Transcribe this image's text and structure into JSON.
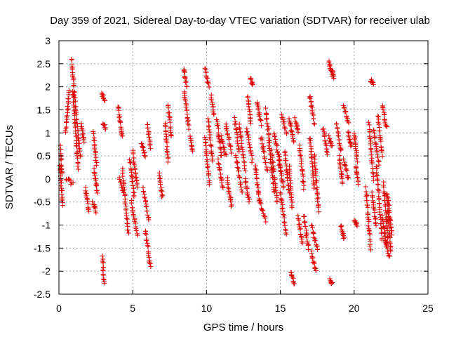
{
  "chart_data": {
    "type": "scatter",
    "title": "Day 359 of 2021, Sidereal Day-to-day VTEC variation (SDTVAR) for receiver ulab",
    "xlabel": "GPS time / hours",
    "ylabel": "SDTVAR / TECUs",
    "xlim": [
      0,
      25
    ],
    "ylim": [
      -2.5,
      3
    ],
    "xticks": [
      0,
      5,
      10,
      15,
      20,
      25
    ],
    "xtick_labels": [
      "0",
      "5",
      "10",
      "15",
      "20",
      "25"
    ],
    "yticks": [
      -2.5,
      -2,
      -1.5,
      -1,
      -0.5,
      0,
      0.5,
      1,
      1.5,
      2,
      2.5,
      3
    ],
    "ytick_labels": [
      "-2.5",
      "-2",
      "-1.5",
      "-1",
      "-0.5",
      "0",
      "0.5",
      "1",
      "1.5",
      "2",
      "2.5",
      "3"
    ],
    "grid": true,
    "marker": "plus",
    "color": "#e00000",
    "series": [
      {
        "name": "SDTVAR",
        "segments": [
          {
            "x0": 0.05,
            "x1": 0.25,
            "y0": 0.3,
            "y1": -0.55
          },
          {
            "x0": 0.1,
            "x1": 0.2,
            "y0": 0.7,
            "y1": 0.1
          },
          {
            "x0": 0.45,
            "x1": 0.7,
            "y0": 1.0,
            "y1": 1.9
          },
          {
            "x0": 0.5,
            "x1": 0.95,
            "y0": 0.0,
            "y1": -0.1
          },
          {
            "x0": 0.85,
            "x1": 1.1,
            "y0": 2.6,
            "y1": 1.7
          },
          {
            "x0": 0.95,
            "x1": 1.3,
            "y0": 1.9,
            "y1": 0.2
          },
          {
            "x0": 1.1,
            "x1": 1.45,
            "y0": 1.6,
            "y1": 0.5
          },
          {
            "x0": 1.5,
            "x1": 1.7,
            "y0": 1.2,
            "y1": 0.8
          },
          {
            "x0": 1.8,
            "x1": 2.0,
            "y0": -0.2,
            "y1": -0.7
          },
          {
            "x0": 2.3,
            "x1": 2.5,
            "y0": -0.5,
            "y1": -0.7
          },
          {
            "x0": 2.35,
            "x1": 2.55,
            "y0": 1.0,
            "y1": 0.3
          },
          {
            "x0": 2.4,
            "x1": 2.6,
            "y0": 0.2,
            "y1": -0.3
          },
          {
            "x0": 2.9,
            "x1": 3.1,
            "y0": 1.85,
            "y1": 1.7
          },
          {
            "x0": 2.95,
            "x1": 3.05,
            "y0": -1.7,
            "y1": -2.25
          },
          {
            "x0": 3.0,
            "x1": 3.15,
            "y0": 1.2,
            "y1": 1.1
          },
          {
            "x0": 4.0,
            "x1": 4.3,
            "y0": 1.6,
            "y1": 0.9
          },
          {
            "x0": 4.1,
            "x1": 4.4,
            "y0": 0.0,
            "y1": -0.3
          },
          {
            "x0": 4.3,
            "x1": 4.7,
            "y0": 0.2,
            "y1": -1.2
          },
          {
            "x0": 4.8,
            "x1": 5.1,
            "y0": 0.4,
            "y1": -0.4
          },
          {
            "x0": 4.9,
            "x1": 5.3,
            "y0": -0.5,
            "y1": -1.2
          },
          {
            "x0": 5.0,
            "x1": 5.3,
            "y0": 0.6,
            "y1": -0.2
          },
          {
            "x0": 5.6,
            "x1": 5.85,
            "y0": 0.8,
            "y1": 0.5
          },
          {
            "x0": 5.7,
            "x1": 6.1,
            "y0": -0.2,
            "y1": -0.9
          },
          {
            "x0": 5.85,
            "x1": 6.2,
            "y0": -1.1,
            "y1": -1.9
          },
          {
            "x0": 6.0,
            "x1": 6.2,
            "y0": 1.2,
            "y1": 0.7
          },
          {
            "x0": 6.8,
            "x1": 7.0,
            "y0": 0.1,
            "y1": -0.4
          },
          {
            "x0": 7.2,
            "x1": 7.4,
            "y0": 1.2,
            "y1": 0.4
          },
          {
            "x0": 7.4,
            "x1": 7.6,
            "y0": 1.6,
            "y1": 0.9
          },
          {
            "x0": 8.45,
            "x1": 8.65,
            "y0": 2.4,
            "y1": 2.0
          },
          {
            "x0": 8.5,
            "x1": 8.8,
            "y0": 1.9,
            "y1": 1.1
          },
          {
            "x0": 8.9,
            "x1": 9.05,
            "y0": 0.9,
            "y1": 0.6
          },
          {
            "x0": 9.9,
            "x1": 10.15,
            "y0": 2.4,
            "y1": 2.0
          },
          {
            "x0": 9.9,
            "x1": 10.2,
            "y0": 0.9,
            "y1": -0.1
          },
          {
            "x0": 10.1,
            "x1": 10.4,
            "y0": 1.3,
            "y1": 0.4
          },
          {
            "x0": 10.3,
            "x1": 10.5,
            "y0": 1.8,
            "y1": 1.4
          },
          {
            "x0": 10.7,
            "x1": 11.0,
            "y0": 1.3,
            "y1": 0.5
          },
          {
            "x0": 10.8,
            "x1": 11.1,
            "y0": 0.4,
            "y1": -0.2
          },
          {
            "x0": 11.0,
            "x1": 11.3,
            "y0": 0.9,
            "y1": 0.5
          },
          {
            "x0": 11.3,
            "x1": 11.7,
            "y0": 1.2,
            "y1": 0.6
          },
          {
            "x0": 11.4,
            "x1": 11.7,
            "y0": 0.0,
            "y1": -0.6
          },
          {
            "x0": 11.9,
            "x1": 12.2,
            "y0": 1.3,
            "y1": 0.6
          },
          {
            "x0": 12.0,
            "x1": 12.4,
            "y0": 0.5,
            "y1": -0.3
          },
          {
            "x0": 12.2,
            "x1": 12.6,
            "y0": 1.2,
            "y1": 0.2
          },
          {
            "x0": 12.6,
            "x1": 12.9,
            "y0": 0.0,
            "y1": -0.5
          },
          {
            "x0": 12.7,
            "x1": 13.1,
            "y0": 1.1,
            "y1": 0.4
          },
          {
            "x0": 12.8,
            "x1": 13.0,
            "y0": 1.8,
            "y1": 1.2
          },
          {
            "x0": 12.95,
            "x1": 13.15,
            "y0": 2.2,
            "y1": 2.05
          },
          {
            "x0": 13.3,
            "x1": 13.6,
            "y0": 0.3,
            "y1": -0.5
          },
          {
            "x0": 13.4,
            "x1": 13.7,
            "y0": 1.7,
            "y1": 1.2
          },
          {
            "x0": 13.6,
            "x1": 14.0,
            "y0": -0.5,
            "y1": -0.9
          },
          {
            "x0": 13.7,
            "x1": 14.1,
            "y0": 0.9,
            "y1": 0.2
          },
          {
            "x0": 14.0,
            "x1": 14.3,
            "y0": 1.5,
            "y1": 0.8
          },
          {
            "x0": 14.2,
            "x1": 14.6,
            "y0": 0.8,
            "y1": -0.3
          },
          {
            "x0": 14.4,
            "x1": 14.8,
            "y0": 0.6,
            "y1": -0.5
          },
          {
            "x0": 14.6,
            "x1": 15.0,
            "y0": 1.0,
            "y1": 0.2
          },
          {
            "x0": 14.9,
            "x1": 15.2,
            "y0": 0.5,
            "y1": -0.2
          },
          {
            "x0": 15.0,
            "x1": 15.4,
            "y0": -0.3,
            "y1": -1.2
          },
          {
            "x0": 15.1,
            "x1": 15.4,
            "y0": 1.4,
            "y1": 1.0
          },
          {
            "x0": 15.3,
            "x1": 15.6,
            "y0": 0.6,
            "y1": -0.3
          },
          {
            "x0": 15.6,
            "x1": 15.9,
            "y0": 1.3,
            "y1": 0.8
          },
          {
            "x0": 15.6,
            "x1": 15.8,
            "y0": 0.3,
            "y1": -0.6
          },
          {
            "x0": 15.7,
            "x1": 15.95,
            "y0": -2.0,
            "y1": -2.3
          },
          {
            "x0": 16.0,
            "x1": 16.2,
            "y0": 1.3,
            "y1": 1.0
          },
          {
            "x0": 16.2,
            "x1": 16.5,
            "y0": -0.8,
            "y1": -1.4
          },
          {
            "x0": 16.3,
            "x1": 16.6,
            "y0": 0.7,
            "y1": -0.2
          },
          {
            "x0": 16.6,
            "x1": 16.9,
            "y0": -0.8,
            "y1": -1.5
          },
          {
            "x0": 17.0,
            "x1": 17.3,
            "y0": 1.8,
            "y1": 1.2
          },
          {
            "x0": 17.0,
            "x1": 17.3,
            "y0": 0.9,
            "y1": -0.2
          },
          {
            "x0": 17.1,
            "x1": 17.5,
            "y0": -1.0,
            "y1": -1.5
          },
          {
            "x0": 17.1,
            "x1": 17.4,
            "y0": -1.6,
            "y1": -2.0
          },
          {
            "x0": 17.3,
            "x1": 17.6,
            "y0": 0.5,
            "y1": -0.7
          },
          {
            "x0": 17.9,
            "x1": 18.2,
            "y0": 1.1,
            "y1": 0.5
          },
          {
            "x0": 18.3,
            "x1": 18.5,
            "y0": 2.55,
            "y1": 2.25
          },
          {
            "x0": 18.3,
            "x1": 18.5,
            "y0": 0.9,
            "y1": 0.7
          },
          {
            "x0": 18.35,
            "x1": 18.5,
            "y0": -2.2,
            "y1": -2.25
          },
          {
            "x0": 18.5,
            "x1": 18.6,
            "y0": 2.35,
            "y1": 2.2
          },
          {
            "x0": 18.8,
            "x1": 19.1,
            "y0": 1.2,
            "y1": 0.6
          },
          {
            "x0": 19.0,
            "x1": 19.2,
            "y0": 0.5,
            "y1": -0.1
          },
          {
            "x0": 19.1,
            "x1": 19.3,
            "y0": -1.0,
            "y1": -1.3
          },
          {
            "x0": 19.3,
            "x1": 19.6,
            "y0": 1.6,
            "y1": 1.2
          },
          {
            "x0": 19.3,
            "x1": 19.6,
            "y0": 0.4,
            "y1": 0.0
          },
          {
            "x0": 19.6,
            "x1": 19.8,
            "y0": 1.0,
            "y1": 0.7
          },
          {
            "x0": 20.0,
            "x1": 20.2,
            "y0": 1.0,
            "y1": 0.4
          },
          {
            "x0": 20.0,
            "x1": 20.2,
            "y0": -0.9,
            "y1": -1.0
          },
          {
            "x0": 20.1,
            "x1": 20.3,
            "y0": 0.3,
            "y1": -0.1
          },
          {
            "x0": 20.8,
            "x1": 21.1,
            "y0": -0.2,
            "y1": -1.5
          },
          {
            "x0": 21.0,
            "x1": 21.3,
            "y0": 1.2,
            "y1": 0.0
          },
          {
            "x0": 21.1,
            "x1": 21.3,
            "y0": 2.15,
            "y1": 2.05
          },
          {
            "x0": 21.2,
            "x1": 21.5,
            "y0": -0.3,
            "y1": -1.0
          },
          {
            "x0": 21.3,
            "x1": 21.7,
            "y0": 1.1,
            "y1": 0.3
          },
          {
            "x0": 21.5,
            "x1": 21.9,
            "y0": 0.3,
            "y1": -1.3
          },
          {
            "x0": 21.6,
            "x1": 21.9,
            "y0": 1.4,
            "y1": 0.5
          },
          {
            "x0": 21.9,
            "x1": 22.2,
            "y0": 1.6,
            "y1": 1.1
          },
          {
            "x0": 21.9,
            "x1": 22.2,
            "y0": -0.8,
            "y1": -1.5
          },
          {
            "x0": 22.0,
            "x1": 22.3,
            "y0": -0.1,
            "y1": -1.3
          },
          {
            "x0": 22.1,
            "x1": 22.4,
            "y0": -1.3,
            "y1": -1.7
          },
          {
            "x0": 22.2,
            "x1": 22.5,
            "y0": -0.3,
            "y1": -1.6
          },
          {
            "x0": 22.3,
            "x1": 22.55,
            "y0": -0.4,
            "y1": -1.2
          }
        ]
      }
    ]
  }
}
